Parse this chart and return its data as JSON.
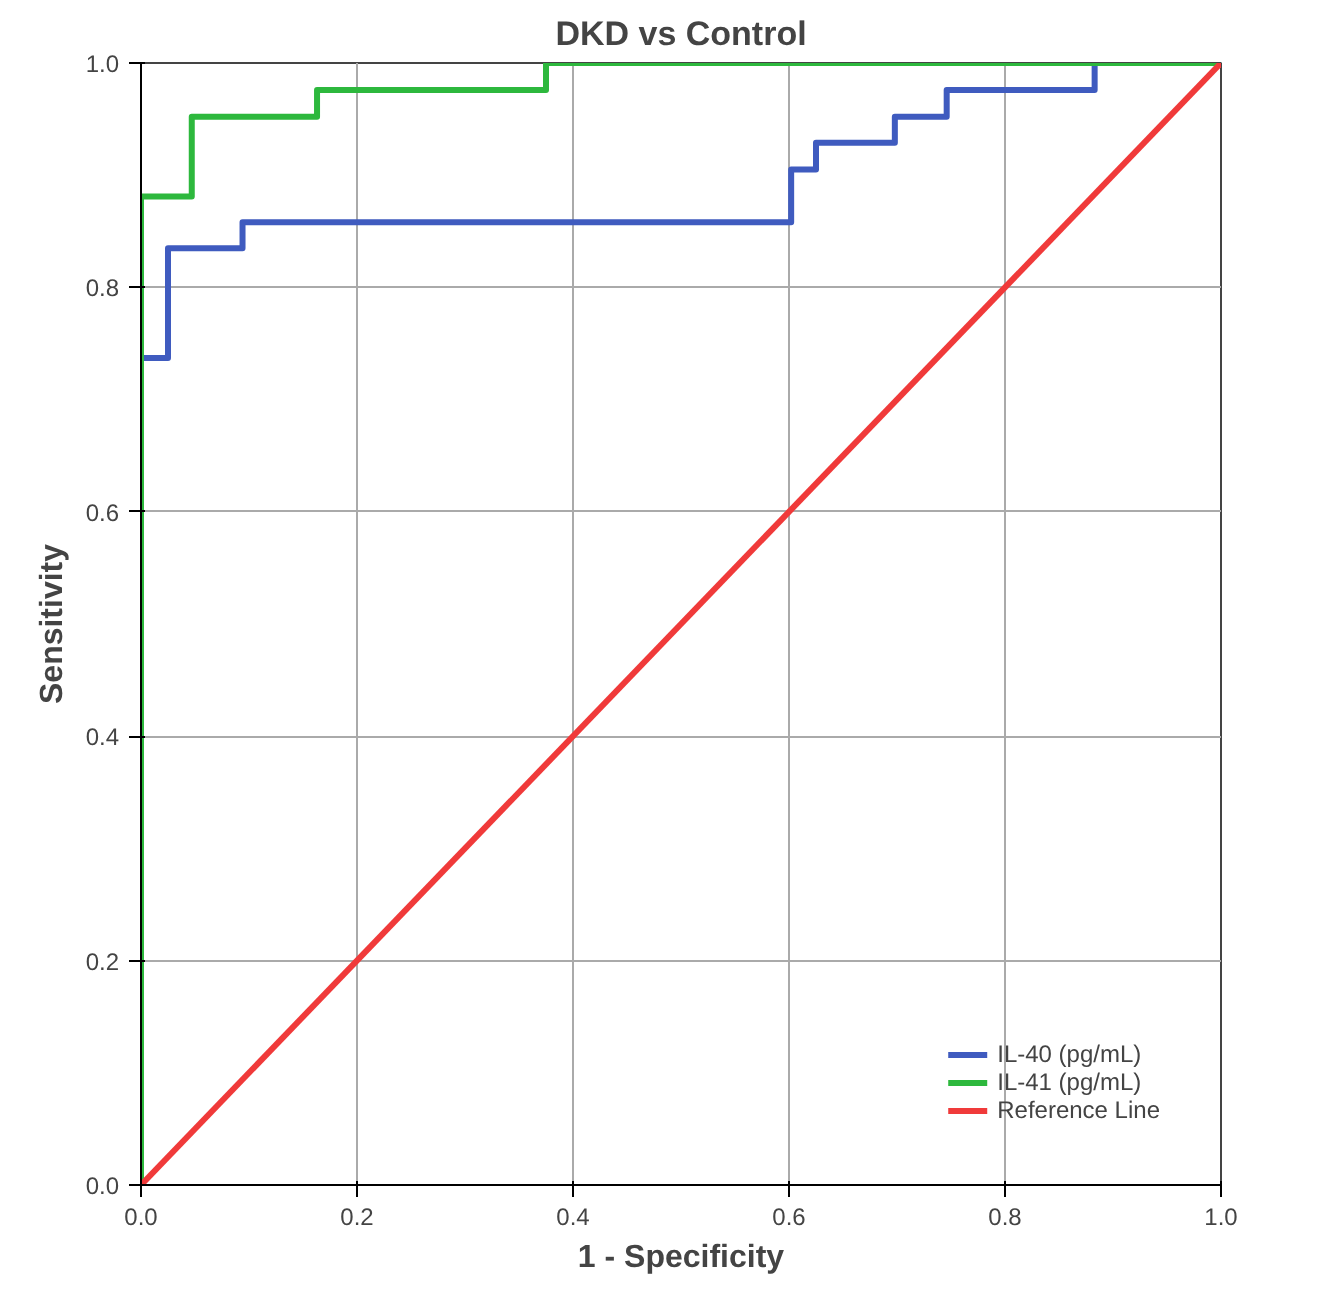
{
  "chart_data": {
    "type": "step",
    "title": "DKD vs Control",
    "xlabel": "1 - Specificity",
    "ylabel": "Sensitivity",
    "xlim": [
      0,
      1
    ],
    "ylim": [
      0,
      1
    ],
    "xticks": [
      {
        "value": 0,
        "label": "0.0"
      },
      0.2,
      0.4,
      0.6,
      0.8,
      {
        "value": 1,
        "label": "1.0"
      }
    ],
    "yticks": [
      {
        "value": 0,
        "label": "0.0"
      },
      0.2,
      0.4,
      0.6,
      0.8,
      {
        "value": 1,
        "label": "1.0"
      }
    ],
    "grid": true,
    "legend": "bottom right",
    "series": [
      {
        "name": "IL-40 (pg/mL)",
        "color": "#3f5bbf",
        "x": [
          0,
          0,
          0.025,
          0.094,
          0.602,
          0.625,
          0.698,
          0.746,
          0.883
        ],
        "values": [
          0,
          0.737,
          0.835,
          0.858,
          0.905,
          0.929,
          0.952,
          0.976,
          1
        ]
      },
      {
        "name": "IL-41 (pg/mL)",
        "color": "#2db83d",
        "x": [
          0,
          0,
          0.047,
          0.163,
          0.375,
          1
        ],
        "values": [
          0,
          0.881,
          0.952,
          0.976,
          1,
          1
        ]
      },
      {
        "name": "Reference Line",
        "type": "line",
        "color": "#f03a3a",
        "x": [
          0,
          1
        ],
        "values": [
          0,
          1
        ]
      }
    ]
  }
}
